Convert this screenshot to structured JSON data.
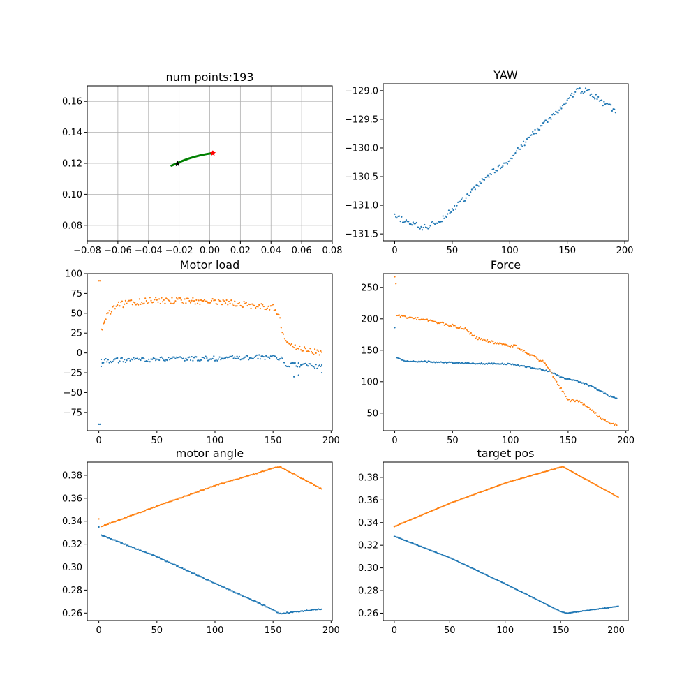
{
  "chart_data": [
    {
      "id": "trajectory",
      "type": "scatter",
      "title": "num points:193",
      "xlim": [
        -0.08,
        0.08
      ],
      "ylim": [
        0.07,
        0.17
      ],
      "xticks": [
        -0.08,
        -0.06,
        -0.04,
        -0.02,
        0.0,
        0.02,
        0.04,
        0.06,
        0.08
      ],
      "yticks": [
        0.08,
        0.1,
        0.12,
        0.14,
        0.16
      ],
      "xtick_labels": [
        "−0.08",
        "−0.06",
        "−0.04",
        "−0.02",
        "0.00",
        "0.02",
        "0.04",
        "0.06",
        "0.08"
      ],
      "ytick_labels": [
        "0.08",
        "0.10",
        "0.12",
        "0.14",
        "0.16"
      ],
      "grid": true,
      "path": {
        "color": "#008000",
        "x": [
          -0.025,
          -0.022,
          -0.018,
          -0.014,
          -0.01,
          -0.006,
          -0.002,
          0.0,
          0.002
        ],
        "y": [
          0.1185,
          0.1198,
          0.1215,
          0.123,
          0.1242,
          0.1252,
          0.126,
          0.1263,
          0.1265
        ]
      },
      "start_marker": {
        "x": -0.021,
        "y": 0.1197,
        "color": "#000000"
      },
      "end_marker": {
        "x": 0.002,
        "y": 0.1265,
        "color": "#ff0000"
      }
    },
    {
      "id": "yaw",
      "type": "scatter",
      "title": "YAW",
      "xlim": [
        -10,
        203
      ],
      "ylim": [
        -131.62,
        -128.88
      ],
      "xticks": [
        0,
        50,
        100,
        150,
        200
      ],
      "yticks": [
        -131.5,
        -131.0,
        -130.5,
        -130.0,
        -129.5,
        -129.0
      ],
      "xtick_labels": [
        "0",
        "50",
        "100",
        "150",
        "200"
      ],
      "ytick_labels": [
        "−131.5",
        "−131.0",
        "−130.5",
        "−130.0",
        "−129.5",
        "−129.0"
      ],
      "series": [
        {
          "color": "#1f77b4",
          "points": [
            [
              0,
              -131.2
            ],
            [
              25,
              -131.4
            ],
            [
              40,
              -131.25
            ],
            [
              60,
              -130.9
            ],
            [
              80,
              -130.5
            ],
            [
              100,
              -130.2
            ],
            [
              120,
              -129.75
            ],
            [
              140,
              -129.4
            ],
            [
              158,
              -129.0
            ],
            [
              168,
              -129.0
            ],
            [
              180,
              -129.2
            ],
            [
              192,
              -129.35
            ]
          ],
          "noise": 0.05
        }
      ]
    },
    {
      "id": "motor-load",
      "type": "scatter",
      "title": "Motor load",
      "xlim": [
        -10,
        201
      ],
      "ylim": [
        -98,
        100
      ],
      "xticks": [
        0,
        50,
        100,
        150,
        200
      ],
      "yticks": [
        -75,
        -50,
        -25,
        0,
        25,
        50,
        75,
        100
      ],
      "xtick_labels": [
        "0",
        "50",
        "100",
        "150",
        "200"
      ],
      "ytick_labels": [
        "−75",
        "−50",
        "−25",
        "0",
        "25",
        "50",
        "75",
        "100"
      ],
      "series": [
        {
          "color": "#1f77b4",
          "points": [
            [
              2,
              -10
            ],
            [
              50,
              -8
            ],
            [
              100,
              -7
            ],
            [
              150,
              -5
            ],
            [
              157,
              -7
            ],
            [
              160,
              -15
            ],
            [
              175,
              -15
            ],
            [
              192,
              -18
            ]
          ],
          "noise": 3,
          "extra": [
            [
              0,
              -90
            ],
            [
              1,
              -90
            ],
            [
              2,
              -17
            ],
            [
              168,
              -30
            ],
            [
              172,
              -28
            ],
            [
              192,
              -25
            ]
          ]
        },
        {
          "color": "#ff7f0e",
          "points": [
            [
              2,
              28
            ],
            [
              8,
              50
            ],
            [
              15,
              60
            ],
            [
              40,
              66
            ],
            [
              80,
              66
            ],
            [
              120,
              62
            ],
            [
              150,
              57
            ],
            [
              155,
              48
            ],
            [
              160,
              15
            ],
            [
              168,
              8
            ],
            [
              185,
              2
            ],
            [
              192,
              1
            ]
          ],
          "noise": 4,
          "extra": [
            [
              0,
              91
            ],
            [
              1,
              91
            ],
            [
              5,
              40
            ]
          ]
        }
      ]
    },
    {
      "id": "force",
      "type": "scatter",
      "title": "Force",
      "xlim": [
        -10,
        202
      ],
      "ylim": [
        22,
        272
      ],
      "xticks": [
        0,
        50,
        100,
        150,
        200
      ],
      "yticks": [
        50,
        100,
        150,
        200,
        250
      ],
      "xtick_labels": [
        "0",
        "50",
        "100",
        "150",
        "200"
      ],
      "ytick_labels": [
        "50",
        "100",
        "150",
        "200",
        "250"
      ],
      "series": [
        {
          "color": "#1f77b4",
          "points": [
            [
              2,
              138
            ],
            [
              8,
              133
            ],
            [
              40,
              131
            ],
            [
              70,
              129
            ],
            [
              100,
              128
            ],
            [
              120,
              122
            ],
            [
              135,
              116
            ],
            [
              145,
              106
            ],
            [
              160,
              100
            ],
            [
              170,
              93
            ],
            [
              185,
              78
            ],
            [
              192,
              73
            ]
          ],
          "noise": 1,
          "extra": [
            [
              0,
              186
            ]
          ]
        },
        {
          "color": "#ff7f0e",
          "points": [
            [
              2,
              205
            ],
            [
              10,
              203
            ],
            [
              20,
              200
            ],
            [
              35,
              195
            ],
            [
              60,
              185
            ],
            [
              70,
              170
            ],
            [
              90,
              160
            ],
            [
              105,
              156
            ],
            [
              115,
              145
            ],
            [
              130,
              130
            ],
            [
              140,
              100
            ],
            [
              150,
              70
            ],
            [
              160,
              70
            ],
            [
              170,
              55
            ],
            [
              180,
              40
            ],
            [
              192,
              30
            ]
          ],
          "noise": 2,
          "extra": [
            [
              0,
              267
            ],
            [
              1,
              256
            ]
          ]
        }
      ]
    },
    {
      "id": "motor-angle",
      "type": "scatter",
      "title": "motor angle",
      "xlim": [
        -10,
        201
      ],
      "ylim": [
        0.2535,
        0.3915
      ],
      "xticks": [
        0,
        50,
        100,
        150,
        200
      ],
      "yticks": [
        0.26,
        0.28,
        0.3,
        0.32,
        0.34,
        0.36,
        0.38
      ],
      "xtick_labels": [
        "0",
        "50",
        "100",
        "150",
        "200"
      ],
      "ytick_labels": [
        "0.26",
        "0.28",
        "0.30",
        "0.32",
        "0.34",
        "0.36",
        "0.38"
      ],
      "series": [
        {
          "color": "#1f77b4",
          "points": [
            [
              2,
              0.328
            ],
            [
              50,
              0.309
            ],
            [
              100,
              0.286
            ],
            [
              150,
              0.263
            ],
            [
              155,
              0.2595
            ],
            [
              192,
              0.2635
            ]
          ],
          "noise": 0.0004,
          "extra": [
            [
              0,
              0.335
            ]
          ]
        },
        {
          "color": "#ff7f0e",
          "points": [
            [
              2,
              0.3355
            ],
            [
              50,
              0.353
            ],
            [
              100,
              0.371
            ],
            [
              150,
              0.386
            ],
            [
              156,
              0.3875
            ],
            [
              192,
              0.368
            ]
          ],
          "noise": 0.0004,
          "extra": [
            [
              0,
              0.342
            ]
          ]
        }
      ]
    },
    {
      "id": "target-pos",
      "type": "scatter",
      "title": "target pos",
      "xlim": [
        -10,
        211
      ],
      "ylim": [
        0.2535,
        0.3935
      ],
      "xticks": [
        0,
        50,
        100,
        150,
        200
      ],
      "yticks": [
        0.26,
        0.28,
        0.3,
        0.32,
        0.34,
        0.36,
        0.38
      ],
      "xtick_labels": [
        "0",
        "50",
        "100",
        "150",
        "200"
      ],
      "ytick_labels": [
        "0.26",
        "0.28",
        "0.30",
        "0.32",
        "0.34",
        "0.36",
        "0.38"
      ],
      "series": [
        {
          "color": "#1f77b4",
          "points": [
            [
              0,
              0.328
            ],
            [
              50,
              0.309
            ],
            [
              100,
              0.286
            ],
            [
              150,
              0.2615
            ],
            [
              155,
              0.26
            ],
            [
              202,
              0.266
            ]
          ],
          "noise": 0.0002
        },
        {
          "color": "#ff7f0e",
          "points": [
            [
              0,
              0.3365
            ],
            [
              50,
              0.357
            ],
            [
              100,
              0.375
            ],
            [
              150,
              0.389
            ],
            [
              152,
              0.3895
            ],
            [
              202,
              0.3625
            ]
          ],
          "noise": 0.0002
        }
      ]
    }
  ]
}
